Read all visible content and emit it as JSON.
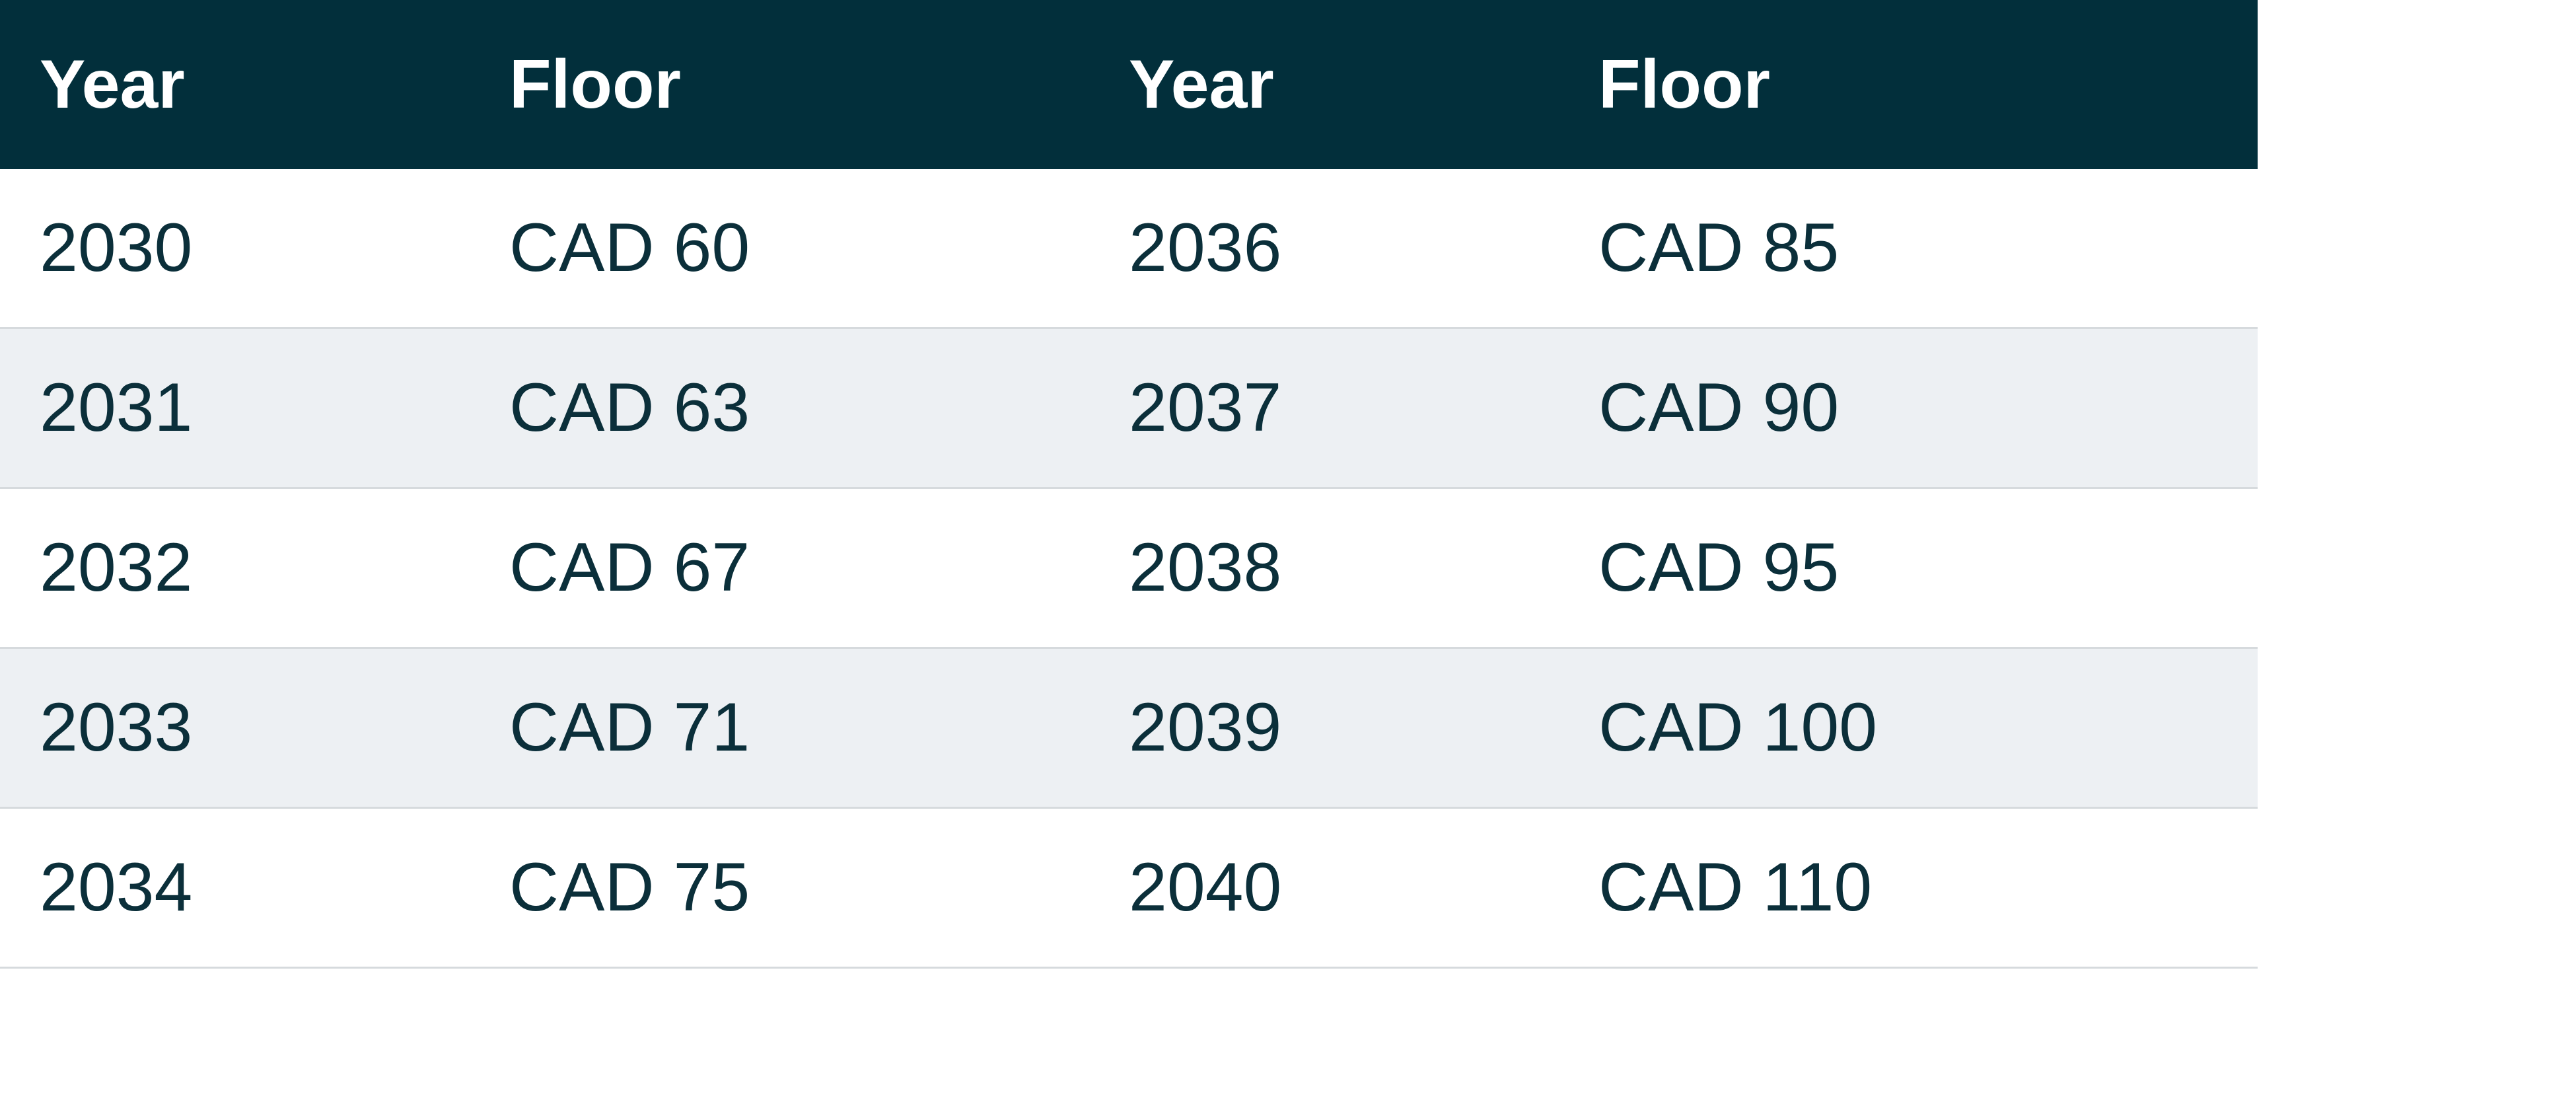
{
  "table": {
    "header": [
      "Year",
      "Floor",
      "Year",
      "Floor"
    ],
    "rows": [
      [
        "2030",
        "CAD 60",
        "2036",
        "CAD 85"
      ],
      [
        "2031",
        "CAD 63",
        "2037",
        "CAD 90"
      ],
      [
        "2032",
        "CAD 67",
        "2038",
        "CAD 95"
      ],
      [
        "2033",
        "CAD 71",
        "2039",
        "CAD 100"
      ],
      [
        "2034",
        "CAD 75",
        "2040",
        "CAD 110"
      ]
    ]
  }
}
